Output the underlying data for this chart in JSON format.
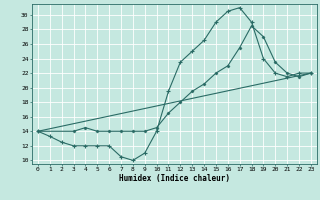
{
  "xlabel": "Humidex (Indice chaleur)",
  "bg_color": "#c5e8e0",
  "line_color": "#2a6b65",
  "grid_color": "#ffffff",
  "xlim": [
    -0.5,
    23.5
  ],
  "ylim": [
    9.5,
    31.5
  ],
  "xticks": [
    0,
    1,
    2,
    3,
    4,
    5,
    6,
    7,
    8,
    9,
    10,
    11,
    12,
    13,
    14,
    15,
    16,
    17,
    18,
    19,
    20,
    21,
    22,
    23
  ],
  "yticks": [
    10,
    12,
    14,
    16,
    18,
    20,
    22,
    24,
    26,
    28,
    30
  ],
  "line1_x": [
    0,
    1,
    2,
    3,
    4,
    5,
    6,
    7,
    8,
    9,
    10,
    11,
    12,
    13,
    14,
    15,
    16,
    17,
    18,
    19,
    20,
    21,
    22,
    23
  ],
  "line1_y": [
    14,
    13.3,
    12.5,
    12,
    12,
    12,
    12,
    10.5,
    10,
    11,
    14,
    19.5,
    23.5,
    25,
    26.5,
    29,
    30.5,
    31,
    29,
    24,
    22,
    21.5,
    22,
    22
  ],
  "line2_x": [
    0,
    3,
    4,
    5,
    6,
    7,
    8,
    9,
    10,
    11,
    12,
    13,
    14,
    15,
    16,
    17,
    18,
    19,
    20,
    21,
    22,
    23
  ],
  "line2_y": [
    14,
    14,
    14.5,
    14,
    14,
    14,
    14,
    14,
    14.5,
    16.5,
    18,
    19.5,
    20.5,
    22,
    23,
    25.5,
    28.5,
    27,
    23.5,
    22,
    21.5,
    22
  ],
  "line3_x": [
    0,
    23
  ],
  "line3_y": [
    14,
    22
  ],
  "tick_fontsize": 4.5,
  "xlabel_fontsize": 5.5,
  "lw": 0.8,
  "ms": 2.0
}
